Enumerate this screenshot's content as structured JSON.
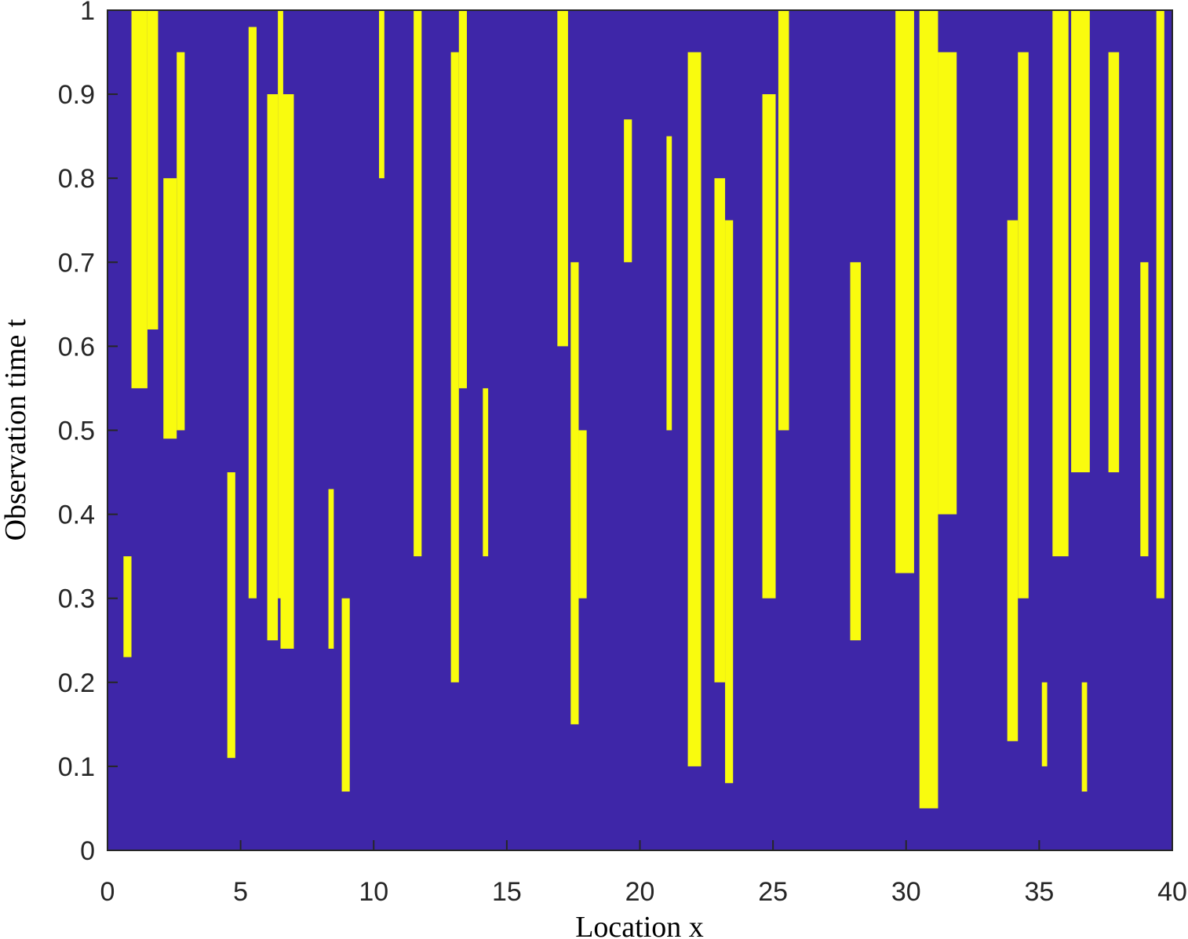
{
  "chart_data": {
    "type": "segments",
    "xlabel": "Location x",
    "ylabel": "Observation time t",
    "background_color": "#3e26a8",
    "color": "#f9fb0e",
    "xlim": [
      0,
      40
    ],
    "ylim": [
      0,
      1
    ],
    "xticks": [
      0,
      5,
      10,
      15,
      20,
      25,
      30,
      35,
      40
    ],
    "yticks": [
      0,
      0.1,
      0.2,
      0.3,
      0.4,
      0.5,
      0.6,
      0.7,
      0.8,
      0.9,
      1
    ],
    "segments": [
      {
        "x": [
          0.9,
          1.5
        ],
        "t": [
          0.55,
          1
        ]
      },
      {
        "x": [
          1.5,
          1.9
        ],
        "t": [
          0.62,
          1
        ]
      },
      {
        "x": [
          2.1,
          2.6
        ],
        "t": [
          0.49,
          0.8
        ]
      },
      {
        "x": [
          2.6,
          2.9
        ],
        "t": [
          0.5,
          0.95
        ]
      },
      {
        "x": [
          0.6,
          0.9
        ],
        "t": [
          0.23,
          0.35
        ]
      },
      {
        "x": [
          4.5,
          4.8
        ],
        "t": [
          0.11,
          0.45
        ]
      },
      {
        "x": [
          5.3,
          5.6
        ],
        "t": [
          0.3,
          0.98
        ]
      },
      {
        "x": [
          6.0,
          6.4
        ],
        "t": [
          0.25,
          0.9
        ]
      },
      {
        "x": [
          6.5,
          7.0
        ],
        "t": [
          0.24,
          0.9
        ]
      },
      {
        "x": [
          6.4,
          6.6
        ],
        "t": [
          0.3,
          1
        ]
      },
      {
        "x": [
          8.3,
          8.5
        ],
        "t": [
          0.24,
          0.43
        ]
      },
      {
        "x": [
          8.8,
          9.1
        ],
        "t": [
          0.07,
          0.3
        ]
      },
      {
        "x": [
          10.2,
          10.4
        ],
        "t": [
          0.8,
          1
        ]
      },
      {
        "x": [
          11.5,
          11.8
        ],
        "t": [
          0.35,
          1
        ]
      },
      {
        "x": [
          12.9,
          13.2
        ],
        "t": [
          0.2,
          0.95
        ]
      },
      {
        "x": [
          13.2,
          13.5
        ],
        "t": [
          0.55,
          1
        ]
      },
      {
        "x": [
          14.1,
          14.3
        ],
        "t": [
          0.35,
          0.55
        ]
      },
      {
        "x": [
          16.9,
          17.3
        ],
        "t": [
          0.6,
          1
        ]
      },
      {
        "x": [
          17.4,
          17.7
        ],
        "t": [
          0.15,
          0.7
        ]
      },
      {
        "x": [
          17.7,
          18.0
        ],
        "t": [
          0.3,
          0.5
        ]
      },
      {
        "x": [
          19.4,
          19.7
        ],
        "t": [
          0.7,
          0.87
        ]
      },
      {
        "x": [
          21.0,
          21.2
        ],
        "t": [
          0.5,
          0.85
        ]
      },
      {
        "x": [
          21.8,
          22.3
        ],
        "t": [
          0.1,
          0.95
        ]
      },
      {
        "x": [
          22.8,
          23.2
        ],
        "t": [
          0.2,
          0.8
        ]
      },
      {
        "x": [
          23.2,
          23.5
        ],
        "t": [
          0.08,
          0.75
        ]
      },
      {
        "x": [
          24.6,
          25.1
        ],
        "t": [
          0.3,
          0.9
        ]
      },
      {
        "x": [
          25.2,
          25.6
        ],
        "t": [
          0.5,
          1
        ]
      },
      {
        "x": [
          27.9,
          28.3
        ],
        "t": [
          0.25,
          0.7
        ]
      },
      {
        "x": [
          29.6,
          30.3
        ],
        "t": [
          0.33,
          1
        ]
      },
      {
        "x": [
          30.5,
          31.2
        ],
        "t": [
          0.05,
          1
        ]
      },
      {
        "x": [
          31.2,
          31.9
        ],
        "t": [
          0.4,
          0.95
        ]
      },
      {
        "x": [
          33.8,
          34.2
        ],
        "t": [
          0.13,
          0.75
        ]
      },
      {
        "x": [
          34.2,
          34.6
        ],
        "t": [
          0.3,
          0.95
        ]
      },
      {
        "x": [
          35.1,
          35.3
        ],
        "t": [
          0.1,
          0.2
        ]
      },
      {
        "x": [
          35.5,
          36.1
        ],
        "t": [
          0.35,
          1
        ]
      },
      {
        "x": [
          36.2,
          36.9
        ],
        "t": [
          0.45,
          1
        ]
      },
      {
        "x": [
          36.6,
          36.8
        ],
        "t": [
          0.07,
          0.2
        ]
      },
      {
        "x": [
          37.6,
          38.0
        ],
        "t": [
          0.45,
          0.95
        ]
      },
      {
        "x": [
          38.8,
          39.1
        ],
        "t": [
          0.35,
          0.7
        ]
      },
      {
        "x": [
          39.4,
          39.7
        ],
        "t": [
          0.3,
          1
        ]
      }
    ]
  }
}
